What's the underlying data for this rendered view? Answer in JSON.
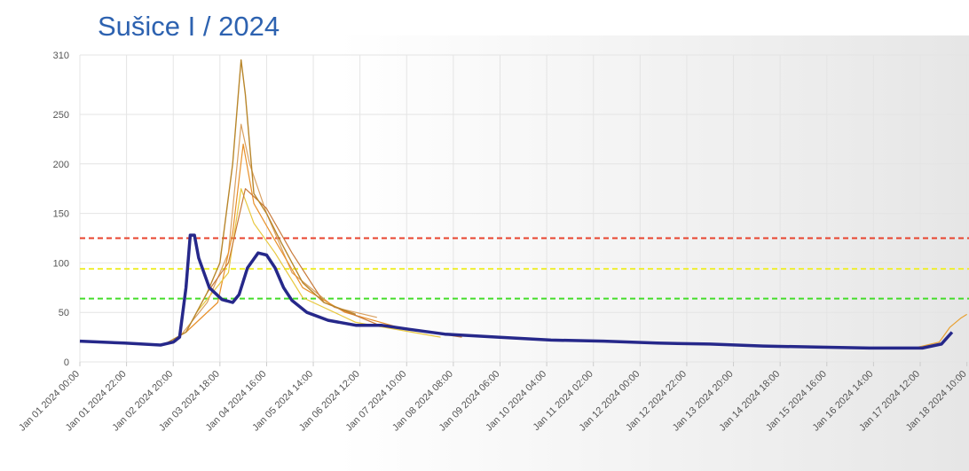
{
  "chart_data": {
    "type": "line",
    "title": "Sušice I / 2024",
    "xlim": [
      "2024-01-01T00:00",
      "2024-01-18T11:00"
    ],
    "xticks": [
      {
        "value": "2024-01-01T00:00",
        "label": "Jan 01 2024 00:00"
      },
      {
        "value": "2024-01-01T22:00",
        "label": "Jan 01 2024 22:00"
      },
      {
        "value": "2024-01-02T20:00",
        "label": "Jan 02 2024 20:00"
      },
      {
        "value": "2024-01-03T18:00",
        "label": "Jan 03 2024 18:00"
      },
      {
        "value": "2024-01-04T16:00",
        "label": "Jan 04 2024 16:00"
      },
      {
        "value": "2024-01-05T14:00",
        "label": "Jan 05 2024 14:00"
      },
      {
        "value": "2024-01-06T12:00",
        "label": "Jan 06 2024 12:00"
      },
      {
        "value": "2024-01-07T10:00",
        "label": "Jan 07 2024 10:00"
      },
      {
        "value": "2024-01-08T08:00",
        "label": "Jan 08 2024 08:00"
      },
      {
        "value": "2024-01-09T06:00",
        "label": "Jan 09 2024 06:00"
      },
      {
        "value": "2024-01-10T04:00",
        "label": "Jan 10 2024 04:00"
      },
      {
        "value": "2024-01-11T02:00",
        "label": "Jan 11 2024 02:00"
      },
      {
        "value": "2024-01-12T00:00",
        "label": "Jan 12 2024 00:00"
      },
      {
        "value": "2024-01-12T22:00",
        "label": "Jan 12 2024 22:00"
      },
      {
        "value": "2024-01-13T20:00",
        "label": "Jan 13 2024 20:00"
      },
      {
        "value": "2024-01-14T18:00",
        "label": "Jan 14 2024 18:00"
      },
      {
        "value": "2024-01-15T16:00",
        "label": "Jan 15 2024 16:00"
      },
      {
        "value": "2024-01-16T14:00",
        "label": "Jan 16 2024 14:00"
      },
      {
        "value": "2024-01-17T12:00",
        "label": "Jan 17 2024 12:00"
      },
      {
        "value": "2024-01-18T10:00",
        "label": "Jan 18 2024 10:00"
      }
    ],
    "ylim": [
      0,
      310
    ],
    "yticks": [
      0,
      50,
      100,
      150,
      200,
      250,
      310
    ],
    "grid": true,
    "thresholds": [
      {
        "value": 125,
        "color": "#e8432d"
      },
      {
        "value": 94,
        "color": "#eeee30"
      },
      {
        "value": 64,
        "color": "#44dd2a"
      }
    ],
    "series": [
      {
        "color": "#d9a060",
        "width": 1.2,
        "x": [
          "2024-01-02T21:00",
          "2024-01-03T12:00",
          "2024-01-03T22:00",
          "2024-01-04T04:00",
          "2024-01-04T08:00",
          "2024-01-04T16:00",
          "2024-01-05T04:00",
          "2024-01-06T00:00",
          "2024-01-06T20:00"
        ],
        "values": [
          20,
          60,
          110,
          240,
          200,
          150,
          90,
          55,
          45
        ]
      },
      {
        "color": "#e8902a",
        "width": 1.2,
        "x": [
          "2024-01-03T02:00",
          "2024-01-03T17:00",
          "2024-01-04T00:00",
          "2024-01-04T05:00",
          "2024-01-04T10:00",
          "2024-01-04T18:00",
          "2024-01-05T09:00",
          "2024-01-06T05:00",
          "2024-01-07T06:00"
        ],
        "values": [
          30,
          60,
          130,
          220,
          160,
          130,
          75,
          50,
          35
        ]
      },
      {
        "color": "#e8c840",
        "width": 1.2,
        "x": [
          "2024-01-03T07:00",
          "2024-01-03T22:00",
          "2024-01-04T04:00",
          "2024-01-04T10:00",
          "2024-01-04T20:00",
          "2024-01-05T09:00",
          "2024-01-06T10:00",
          "2024-01-08T02:00"
        ],
        "values": [
          50,
          90,
          175,
          140,
          110,
          65,
          40,
          25
        ]
      },
      {
        "color": "#c87a3a",
        "width": 1.2,
        "x": [
          "2024-01-03T12:00",
          "2024-01-03T22:00",
          "2024-01-04T06:00",
          "2024-01-04T16:00",
          "2024-01-05T04:00",
          "2024-01-05T19:00",
          "2024-01-06T20:00",
          "2024-01-08T12:00"
        ],
        "values": [
          70,
          100,
          175,
          155,
          110,
          60,
          38,
          25
        ]
      },
      {
        "color": "#b8862b",
        "width": 1.4,
        "x": [
          "2024-01-02T16:00",
          "2024-01-03T02:00",
          "2024-01-03T12:00",
          "2024-01-03T18:00",
          "2024-01-04T00:00",
          "2024-01-04T03:00",
          "2024-01-04T04:00",
          "2024-01-04T06:00",
          "2024-01-04T10:00",
          "2024-01-04T16:00",
          "2024-01-04T23:00",
          "2024-01-05T09:00",
          "2024-01-05T19:00",
          "2024-01-06T10:00"
        ],
        "values": [
          18,
          30,
          70,
          100,
          200,
          280,
          305,
          270,
          170,
          150,
          120,
          80,
          60,
          48
        ]
      },
      {
        "color": "#e8a030",
        "width": 1.2,
        "x": [
          "2024-01-17T11:00",
          "2024-01-17T21:00",
          "2024-01-18T02:00",
          "2024-01-18T07:00",
          "2024-01-18T10:00"
        ],
        "values": [
          15,
          20,
          35,
          44,
          48
        ]
      },
      {
        "color": "#26288a",
        "width": 3.5,
        "x": [
          "2024-01-01T00:00",
          "2024-01-01T21:00",
          "2024-01-02T14:00",
          "2024-01-02T20:00",
          "2024-01-02T23:00",
          "2024-01-03T02:00",
          "2024-01-03T04:00",
          "2024-01-03T06:00",
          "2024-01-03T08:00",
          "2024-01-03T13:00",
          "2024-01-03T19:00",
          "2024-01-04T00:00",
          "2024-01-04T03:00",
          "2024-01-04T07:00",
          "2024-01-04T12:00",
          "2024-01-04T16:00",
          "2024-01-04T20:00",
          "2024-01-05T00:00",
          "2024-01-05T04:00",
          "2024-01-05T11:00",
          "2024-01-05T21:00",
          "2024-01-06T10:00",
          "2024-01-06T22:00",
          "2024-01-07T11:00",
          "2024-01-08T04:00",
          "2024-01-09T05:00",
          "2024-01-10T06:00",
          "2024-01-11T07:00",
          "2024-01-12T08:00",
          "2024-01-13T09:00",
          "2024-01-14T10:00",
          "2024-01-15T11:00",
          "2024-01-16T12:00",
          "2024-01-17T13:00",
          "2024-01-17T22:00",
          "2024-01-18T03:00"
        ],
        "values": [
          21,
          19,
          17,
          20,
          25,
          75,
          128,
          128,
          105,
          75,
          63,
          60,
          68,
          95,
          110,
          108,
          95,
          75,
          62,
          50,
          42,
          37,
          37,
          33,
          28,
          25,
          22,
          21,
          19,
          18,
          16,
          15,
          14,
          14,
          18,
          30
        ]
      }
    ]
  }
}
